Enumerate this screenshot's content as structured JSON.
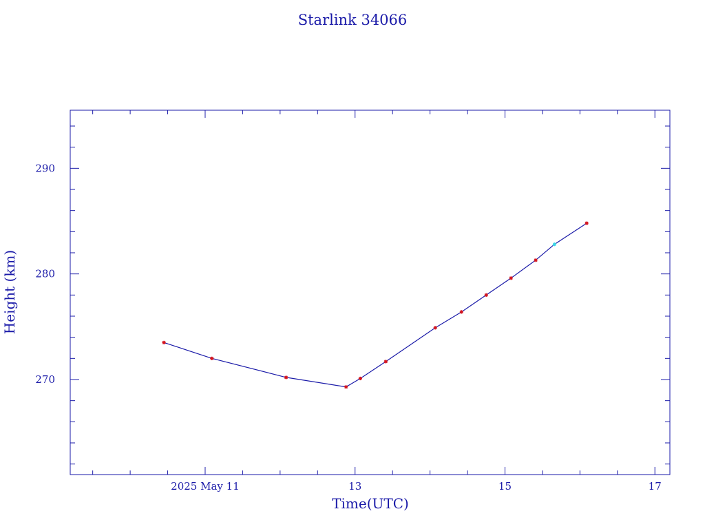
{
  "colors": {
    "axis": "#1a1aa8",
    "line": "#1a1aa8",
    "marker": "#d4141e",
    "highlight_marker": "#38d8e8",
    "background": "#ffffff"
  },
  "chart_data": {
    "type": "line",
    "title": "Starlink 34066",
    "xlabel": "Time(UTC)",
    "ylabel": "Height (km)",
    "x_unit": "days (2025 May)",
    "xlim": [
      9.2,
      17.2
    ],
    "ylim": [
      261,
      295.5
    ],
    "x_ticks": [
      {
        "x": 11,
        "label": "2025 May 11"
      },
      {
        "x": 13,
        "label": "13"
      },
      {
        "x": 15,
        "label": "15"
      },
      {
        "x": 17,
        "label": "17"
      }
    ],
    "x_minor_step": 0.5,
    "y_ticks": [
      {
        "y": 270,
        "label": "270"
      },
      {
        "y": 280,
        "label": "280"
      },
      {
        "y": 290,
        "label": "290"
      }
    ],
    "y_minor_step": 2,
    "grid": false,
    "series": [
      {
        "points": [
          {
            "x": 10.45,
            "y": 273.5
          },
          {
            "x": 11.09,
            "y": 272.0
          },
          {
            "x": 12.08,
            "y": 270.2
          },
          {
            "x": 12.88,
            "y": 269.3
          },
          {
            "x": 13.07,
            "y": 270.1
          },
          {
            "x": 13.41,
            "y": 271.7
          },
          {
            "x": 14.07,
            "y": 274.9
          },
          {
            "x": 14.42,
            "y": 276.4
          },
          {
            "x": 14.75,
            "y": 278.0
          },
          {
            "x": 15.08,
            "y": 279.6
          },
          {
            "x": 15.41,
            "y": 281.3
          },
          {
            "x": 15.66,
            "y": 282.8,
            "highlight": true
          },
          {
            "x": 16.09,
            "y": 284.8
          }
        ]
      }
    ]
  }
}
